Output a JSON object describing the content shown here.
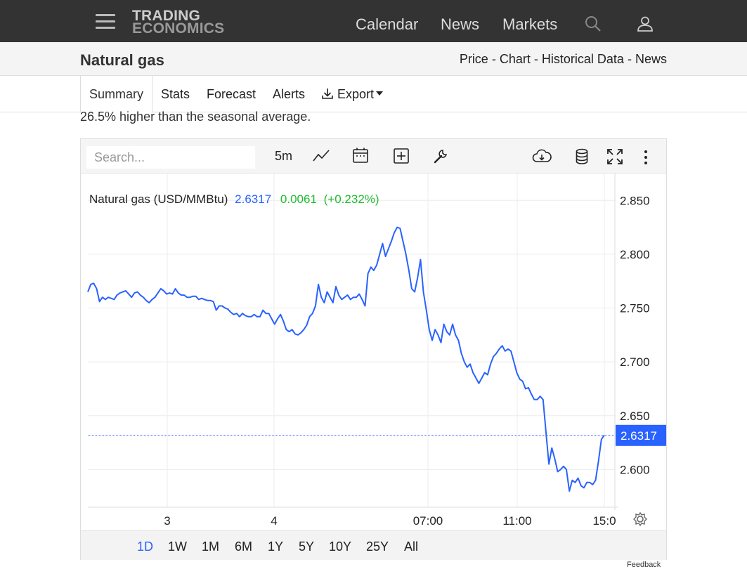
{
  "header": {
    "logo_line1": "TRADING",
    "logo_line2": "ECONOMICS",
    "nav": [
      "Calendar",
      "News",
      "Markets"
    ],
    "icons": [
      "hamburger-icon",
      "search-icon",
      "user-icon"
    ]
  },
  "subheader": {
    "title": "Natural gas",
    "crumbs": [
      "Price",
      "Chart",
      "Historical Data",
      "News"
    ],
    "sep": "-"
  },
  "tabs": {
    "summary": "Summary",
    "stats": "Stats",
    "forecast": "Forecast",
    "alerts": "Alerts",
    "export": "Export"
  },
  "intro_text": "26.5% higher than the seasonal average.",
  "toolbar": {
    "search_placeholder": "Search...",
    "interval": "5m"
  },
  "legend": {
    "name": "Natural gas (USD/MMBtu)",
    "price": "2.6317",
    "change": "0.0061",
    "change_pct": "(+0.232%)"
  },
  "colors": {
    "line": "#2962ff",
    "positive": "#22bb33",
    "topbar": "#333333"
  },
  "ranges": [
    "1D",
    "1W",
    "1M",
    "6M",
    "1Y",
    "5Y",
    "10Y",
    "25Y",
    "All"
  ],
  "active_range": "1D",
  "feedback": "Feedback",
  "chart_data": {
    "type": "line",
    "x_ticks": [
      "3",
      "4",
      "07:00",
      "11:00",
      "15:0"
    ],
    "y_ticks": [
      "2.850",
      "2.800",
      "2.750",
      "2.700",
      "2.650",
      "2.600"
    ],
    "ylim": [
      2.565,
      2.875
    ],
    "last_value": "2.6317",
    "series": [
      {
        "values": [
          2.765,
          2.772,
          2.773,
          2.768,
          2.756,
          2.76,
          2.758,
          2.76,
          2.759,
          2.758,
          2.762,
          2.764,
          2.765,
          2.766,
          2.763,
          2.76,
          2.764,
          2.765,
          2.762,
          2.76,
          2.757,
          2.755,
          2.758,
          2.76,
          2.764,
          2.768,
          2.766,
          2.763,
          2.764,
          2.763,
          2.768,
          2.764,
          2.762,
          2.762,
          2.76,
          2.76,
          2.761,
          2.761,
          2.758,
          2.759,
          2.758,
          2.757,
          2.757,
          2.756,
          2.748,
          2.752,
          2.752,
          2.75,
          2.749,
          2.746,
          2.744,
          2.745,
          2.742,
          2.745,
          2.743,
          2.742,
          2.742,
          2.744,
          2.742,
          2.742,
          2.748,
          2.745,
          2.745,
          2.74,
          2.735,
          2.74,
          2.744,
          2.738,
          2.73,
          2.728,
          2.73,
          2.726,
          2.725,
          2.727,
          2.73,
          2.734,
          2.742,
          2.745,
          2.752,
          2.772,
          2.76,
          2.755,
          2.765,
          2.76,
          2.755,
          2.77,
          2.762,
          2.758,
          2.76,
          2.762,
          2.758,
          2.76,
          2.76,
          2.763,
          2.758,
          2.752,
          2.782,
          2.788,
          2.785,
          2.79,
          2.8,
          2.81,
          2.798,
          2.805,
          2.812,
          2.82,
          2.825,
          2.824,
          2.812,
          2.8,
          2.785,
          2.768,
          2.765,
          2.778,
          2.795,
          2.765,
          2.748,
          2.73,
          2.72,
          2.73,
          2.725,
          2.718,
          2.735,
          2.728,
          2.725,
          2.735,
          2.725,
          2.72,
          2.708,
          2.7,
          2.695,
          2.698,
          2.69,
          2.685,
          2.68,
          2.685,
          2.69,
          2.688,
          2.698,
          2.705,
          2.708,
          2.712,
          2.715,
          2.71,
          2.712,
          2.71,
          2.7,
          2.69,
          2.684,
          2.682,
          2.675,
          2.676,
          2.67,
          2.665,
          2.665,
          2.668,
          2.665,
          2.635,
          2.605,
          2.62,
          2.61,
          2.598,
          2.6,
          2.603,
          2.6,
          2.58,
          2.59,
          2.588,
          2.592,
          2.585,
          2.583,
          2.588,
          2.588,
          2.586,
          2.59,
          2.608,
          2.628,
          2.632
        ]
      }
    ]
  }
}
